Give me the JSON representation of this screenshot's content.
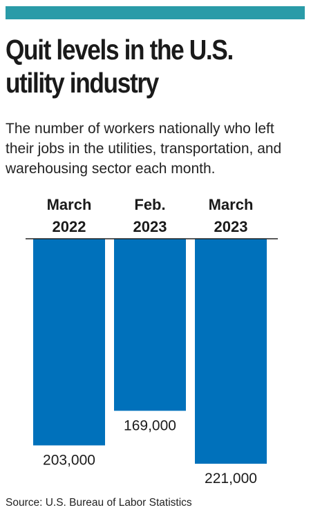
{
  "header": {
    "accent_color": "#2a9ba8",
    "title_line1": "Quit levels in the U.S.",
    "title_line2": "utility industry",
    "subtitle_line1": "The number of workers nationally who left",
    "subtitle_line2": "their jobs in the utilities, transportation, and",
    "subtitle_line3": "warehousing sector each month."
  },
  "chart_data": {
    "type": "bar",
    "orientation": "downward",
    "categories": [
      [
        "March",
        "2022"
      ],
      [
        "Feb.",
        "2023"
      ],
      [
        "March",
        "2023"
      ]
    ],
    "values": [
      203000,
      169000,
      221000
    ],
    "value_labels": [
      "203,000",
      "169,000",
      "221,000"
    ],
    "bar_color": "#0071bb",
    "ylim": [
      0,
      221000
    ],
    "grid": false,
    "legend": "none"
  },
  "footer": {
    "source": "Source: U.S. Bureau of Labor Statistics"
  }
}
